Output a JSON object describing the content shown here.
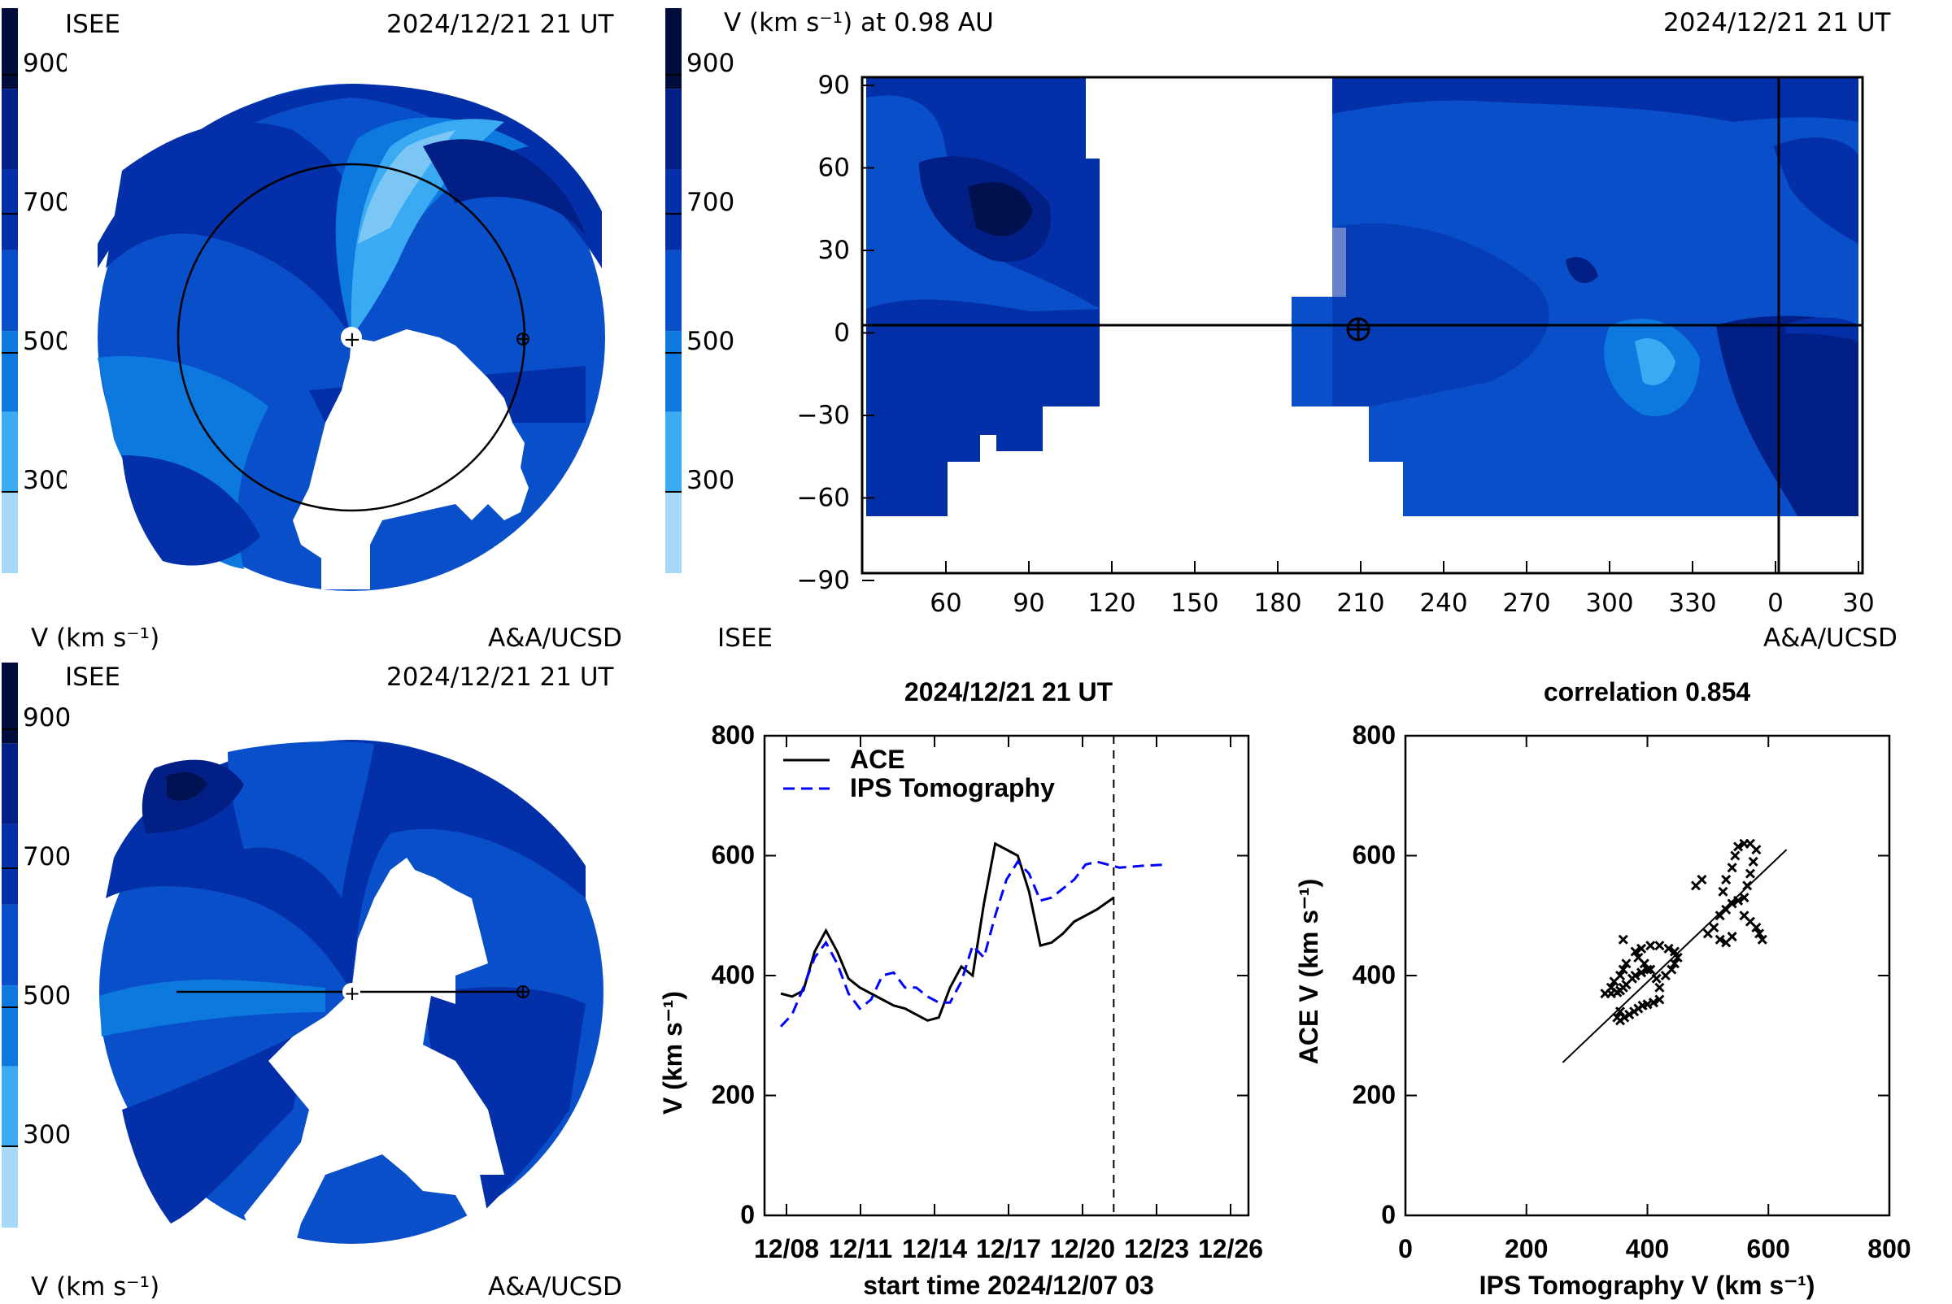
{
  "scale": {
    "ticks": [
      "900",
      "700",
      "500",
      "300"
    ],
    "colors": [
      "#a6d8f7",
      "#3aabf2",
      "#0d79df",
      "#0a4fca",
      "#0330a8",
      "#021f86",
      "#000d3c"
    ]
  },
  "top_left": {
    "logo": "ISEE",
    "date": "2024/12/21 21 UT",
    "units": "V (km s⁻¹)",
    "credit": "A&A/UCSD"
  },
  "top_right": {
    "title": "V (km s⁻¹) at 0.98 AU",
    "date": "2024/12/21 21 UT",
    "logo": "ISEE",
    "credit": "A&A/UCSD",
    "x_ticks": [
      "60",
      "90",
      "120",
      "150",
      "180",
      "210",
      "240",
      "270",
      "300",
      "330",
      "0",
      "30"
    ],
    "y_ticks": [
      "90",
      "60",
      "30",
      "0",
      "−30",
      "−60",
      "−90"
    ]
  },
  "bottom_left": {
    "logo": "ISEE",
    "date": "2024/12/21 21 UT",
    "units": "V (km s⁻¹)",
    "credit": "A&A/UCSD"
  },
  "chart_data": [
    {
      "type": "line",
      "title": "2024/12/21 21 UT",
      "xlabel": "start time 2024/12/07 03",
      "ylabel": "V (km s⁻¹)",
      "x_tick_labels": [
        "12/08",
        "12/11",
        "12/14",
        "12/17",
        "12/20",
        "12/23",
        "12/26"
      ],
      "y_ticks": [
        0,
        200,
        400,
        600,
        800
      ],
      "ylim": [
        0,
        800
      ],
      "xlim_days": [
        0,
        20
      ],
      "current_time_day": 14.75,
      "legend": "top-left",
      "series": [
        {
          "name": "ACE",
          "color": "#000000",
          "dash": "solid",
          "x": [
            0,
            0.5,
            1.0,
            1.5,
            2.0,
            2.5,
            3.0,
            3.5,
            4.0,
            4.5,
            5.0,
            5.5,
            6.0,
            6.5,
            7.0,
            7.5,
            8.0,
            8.5,
            9.0,
            9.5,
            10.0,
            10.5,
            11.0,
            11.5,
            12.0,
            12.5,
            13.0,
            13.5,
            14.0,
            14.75
          ],
          "y": [
            370,
            365,
            375,
            440,
            475,
            440,
            395,
            380,
            370,
            360,
            350,
            345,
            335,
            325,
            330,
            380,
            415,
            400,
            520,
            620,
            610,
            600,
            540,
            450,
            455,
            470,
            490,
            500,
            510,
            530
          ]
        },
        {
          "name": "IPS Tomography",
          "color": "#0000ff",
          "dash": "dashed",
          "x": [
            0,
            0.5,
            1.0,
            1.5,
            2.0,
            2.5,
            3.0,
            3.5,
            4.0,
            4.5,
            5.0,
            5.5,
            6.0,
            6.5,
            7.0,
            7.5,
            8.0,
            8.5,
            9.0,
            9.5,
            10.0,
            10.5,
            11.0,
            11.5,
            12.0,
            12.5,
            13.0,
            13.5,
            14.0,
            14.5,
            15.0,
            16.0,
            17.0
          ],
          "y": [
            315,
            335,
            380,
            430,
            455,
            420,
            370,
            345,
            360,
            400,
            405,
            380,
            380,
            365,
            355,
            355,
            390,
            450,
            430,
            500,
            560,
            590,
            570,
            525,
            530,
            545,
            560,
            585,
            590,
            585,
            580,
            583,
            585
          ]
        }
      ]
    },
    {
      "type": "scatter",
      "title": "correlation 0.854",
      "xlabel": "IPS Tomography V (km s⁻¹)",
      "ylabel": "ACE V (km s⁻¹)",
      "x_ticks": [
        0,
        200,
        400,
        600,
        800
      ],
      "y_ticks": [
        0,
        200,
        400,
        600,
        800
      ],
      "xlim": [
        0,
        800
      ],
      "ylim": [
        0,
        800
      ],
      "fit_line": {
        "x": [
          260,
          630
        ],
        "y": [
          255,
          610
        ]
      },
      "points": [
        [
          330,
          370
        ],
        [
          340,
          370
        ],
        [
          350,
          372
        ],
        [
          355,
          375
        ],
        [
          360,
          380
        ],
        [
          365,
          385
        ],
        [
          375,
          395
        ],
        [
          380,
          400
        ],
        [
          390,
          405
        ],
        [
          400,
          410
        ],
        [
          350,
          330
        ],
        [
          355,
          325
        ],
        [
          362,
          330
        ],
        [
          370,
          335
        ],
        [
          378,
          340
        ],
        [
          385,
          345
        ],
        [
          392,
          350
        ],
        [
          400,
          352
        ],
        [
          410,
          355
        ],
        [
          420,
          360
        ],
        [
          420,
          380
        ],
        [
          415,
          395
        ],
        [
          405,
          410
        ],
        [
          395,
          420
        ],
        [
          385,
          430
        ],
        [
          380,
          440
        ],
        [
          390,
          445
        ],
        [
          405,
          450
        ],
        [
          420,
          450
        ],
        [
          435,
          445
        ],
        [
          445,
          440
        ],
        [
          450,
          430
        ],
        [
          445,
          420
        ],
        [
          440,
          410
        ],
        [
          430,
          400
        ],
        [
          365,
          420
        ],
        [
          360,
          410
        ],
        [
          355,
          400
        ],
        [
          345,
          390
        ],
        [
          340,
          380
        ],
        [
          500,
          470
        ],
        [
          510,
          480
        ],
        [
          520,
          500
        ],
        [
          530,
          510
        ],
        [
          540,
          520
        ],
        [
          550,
          525
        ],
        [
          560,
          530
        ],
        [
          565,
          550
        ],
        [
          570,
          570
        ],
        [
          575,
          590
        ],
        [
          580,
          610
        ],
        [
          570,
          620
        ],
        [
          560,
          620
        ],
        [
          550,
          615
        ],
        [
          545,
          600
        ],
        [
          540,
          580
        ],
        [
          530,
          560
        ],
        [
          525,
          540
        ],
        [
          560,
          500
        ],
        [
          570,
          490
        ],
        [
          580,
          480
        ],
        [
          585,
          470
        ],
        [
          590,
          460
        ],
        [
          520,
          460
        ],
        [
          530,
          455
        ],
        [
          540,
          465
        ],
        [
          480,
          550
        ],
        [
          490,
          560
        ],
        [
          360,
          460
        ],
        [
          355,
          340
        ]
      ]
    }
  ]
}
